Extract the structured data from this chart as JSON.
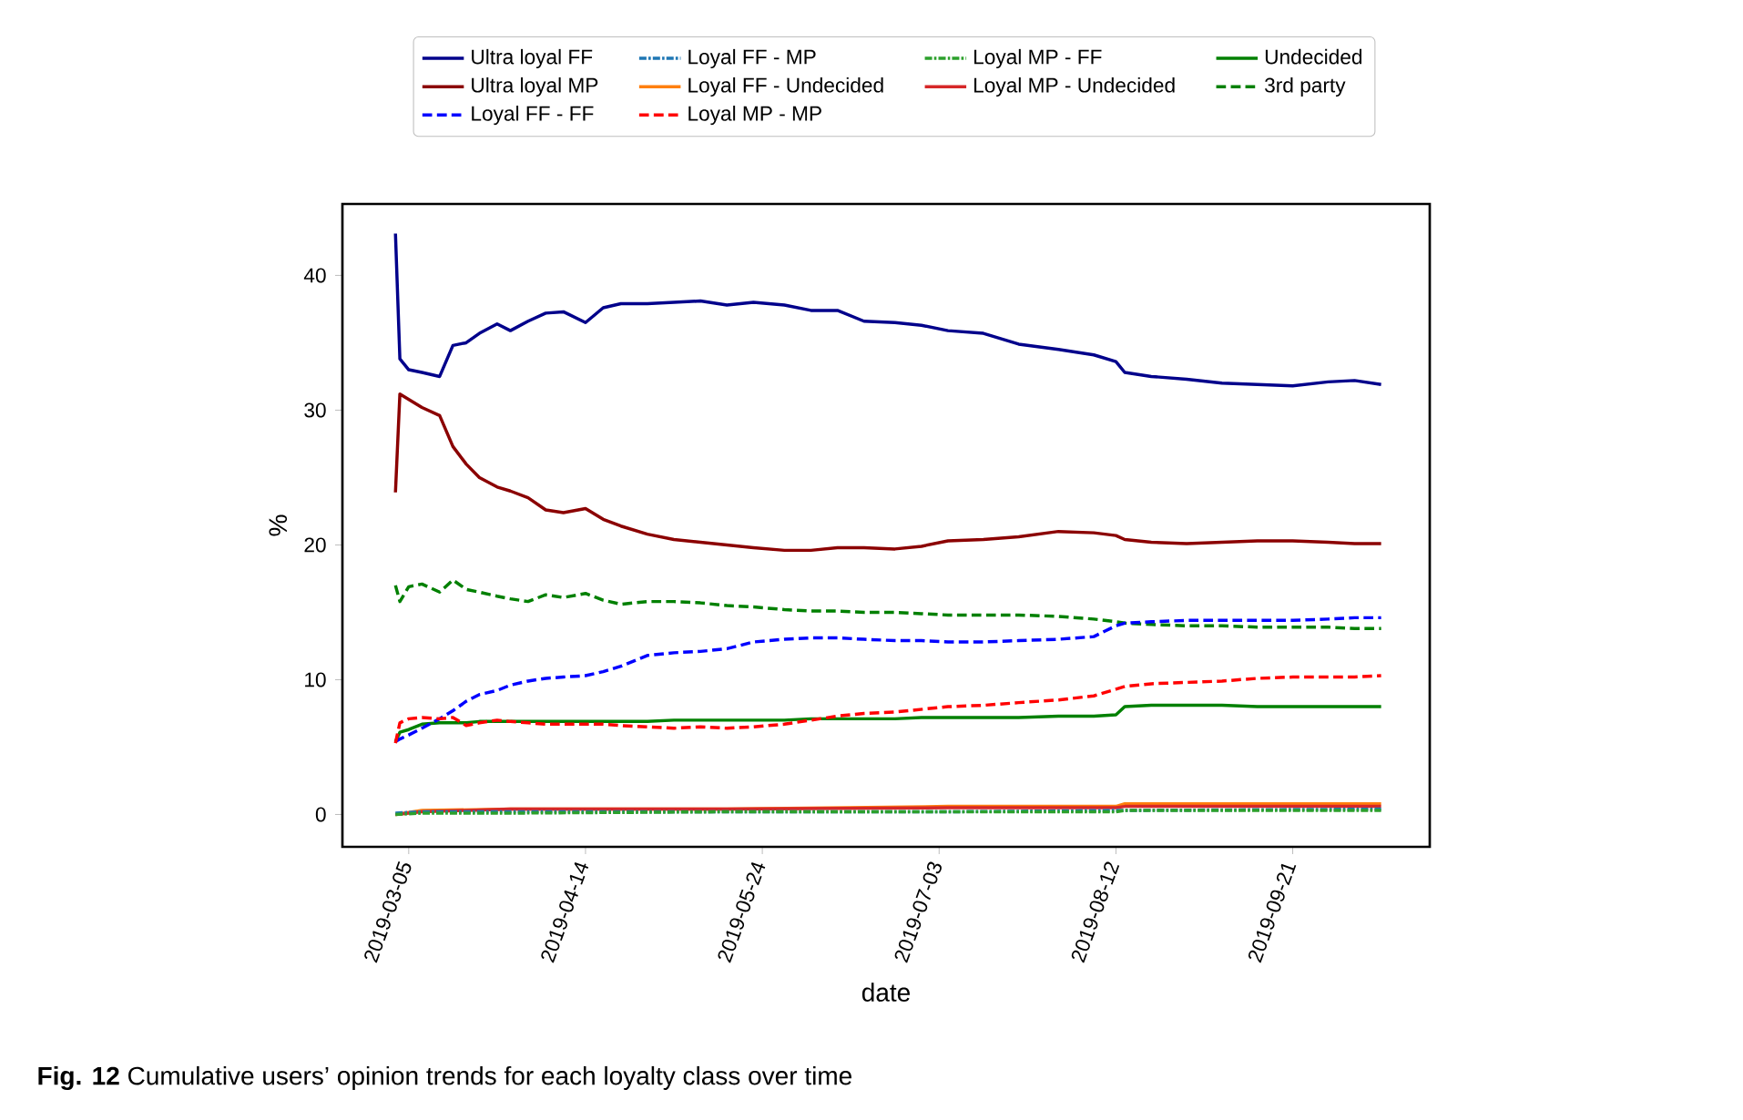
{
  "chart_data": {
    "type": "line",
    "xlabel": "date",
    "ylabel": "%",
    "xlim": [
      "2019-02-18",
      "2019-10-22"
    ],
    "xticks": [
      "2019-03-05",
      "2019-04-14",
      "2019-05-24",
      "2019-07-03",
      "2019-08-12",
      "2019-09-21"
    ],
    "ylim": [
      -2.4,
      45.3
    ],
    "yticks": [
      0,
      10,
      20,
      30,
      40
    ],
    "grid": false,
    "legend": "top",
    "marker": "none",
    "x": [
      "2019-03-02",
      "2019-03-03",
      "2019-03-05",
      "2019-03-08",
      "2019-03-12",
      "2019-03-15",
      "2019-03-18",
      "2019-03-21",
      "2019-03-25",
      "2019-03-28",
      "2019-04-01",
      "2019-04-05",
      "2019-04-09",
      "2019-04-14",
      "2019-04-18",
      "2019-04-22",
      "2019-04-28",
      "2019-05-04",
      "2019-05-10",
      "2019-05-16",
      "2019-05-22",
      "2019-05-29",
      "2019-06-04",
      "2019-06-10",
      "2019-06-16",
      "2019-06-23",
      "2019-06-29",
      "2019-07-05",
      "2019-07-13",
      "2019-07-21",
      "2019-07-30",
      "2019-08-07",
      "2019-08-12",
      "2019-08-14",
      "2019-08-20",
      "2019-08-28",
      "2019-09-05",
      "2019-09-13",
      "2019-09-21",
      "2019-09-29",
      "2019-10-05",
      "2019-10-11"
    ],
    "series": [
      {
        "name": "Ultra loyal FF",
        "color": "#00008b",
        "line_style": "solid",
        "values": [
          43.1,
          33.8,
          33.0,
          32.8,
          32.5,
          34.8,
          35.0,
          35.7,
          36.4,
          35.9,
          36.6,
          37.2,
          37.3,
          36.5,
          37.6,
          37.9,
          37.9,
          38.0,
          38.1,
          37.8,
          38.0,
          37.8,
          37.4,
          37.4,
          36.6,
          36.5,
          36.3,
          35.9,
          35.7,
          34.9,
          34.5,
          34.1,
          33.6,
          32.8,
          32.5,
          32.3,
          32.0,
          31.9,
          31.8,
          32.1,
          32.2,
          31.9
        ]
      },
      {
        "name": "Loyal FF - MP",
        "color": "#1f77b4",
        "line_style": "dashdot",
        "x": [
          "2019-03-02",
          "2019-03-08",
          "2019-03-28",
          "2019-05-16",
          "2019-07-05",
          "2019-08-12",
          "2019-08-14",
          "2019-10-11"
        ],
        "values": [
          0.1,
          0.2,
          0.2,
          0.2,
          0.2,
          0.3,
          0.3,
          0.4
        ]
      },
      {
        "name": "Loyal MP - FF",
        "color": "#2ca02c",
        "line_style": "dashdot",
        "x": [
          "2019-03-02",
          "2019-03-08",
          "2019-03-28",
          "2019-05-16",
          "2019-07-05",
          "2019-08-12",
          "2019-08-14",
          "2019-10-11"
        ],
        "values": [
          0.0,
          0.1,
          0.1,
          0.2,
          0.2,
          0.2,
          0.3,
          0.3
        ]
      },
      {
        "name": "Undecided",
        "color": "#008000",
        "line_style": "solid",
        "values": [
          5.4,
          6.1,
          6.3,
          6.7,
          6.8,
          6.8,
          6.8,
          6.9,
          6.9,
          6.9,
          6.9,
          6.9,
          6.9,
          6.9,
          6.9,
          6.9,
          6.9,
          7.0,
          7.0,
          7.0,
          7.0,
          7.0,
          7.1,
          7.1,
          7.1,
          7.1,
          7.2,
          7.2,
          7.2,
          7.2,
          7.3,
          7.3,
          7.4,
          8.0,
          8.1,
          8.1,
          8.1,
          8.0,
          8.0,
          8.0,
          8.0,
          8.0
        ]
      },
      {
        "name": "Ultra loyal MP",
        "color": "#8b0000",
        "line_style": "solid",
        "values": [
          23.9,
          31.2,
          30.8,
          30.2,
          29.6,
          27.3,
          26.0,
          25.0,
          24.3,
          24.0,
          23.5,
          22.6,
          22.4,
          22.7,
          21.9,
          21.4,
          20.8,
          20.4,
          20.2,
          20.0,
          19.8,
          19.6,
          19.6,
          19.8,
          19.8,
          19.7,
          19.9,
          20.3,
          20.4,
          20.6,
          21.0,
          20.9,
          20.7,
          20.4,
          20.2,
          20.1,
          20.2,
          20.3,
          20.3,
          20.2,
          20.1,
          20.1
        ]
      },
      {
        "name": "Loyal FF - Undecided",
        "color": "#ff7f0e",
        "line_style": "solid",
        "x": [
          "2019-03-02",
          "2019-03-08",
          "2019-03-28",
          "2019-05-16",
          "2019-07-05",
          "2019-08-12",
          "2019-08-14",
          "2019-10-11"
        ],
        "values": [
          0.0,
          0.3,
          0.4,
          0.4,
          0.6,
          0.6,
          0.8,
          0.8
        ]
      },
      {
        "name": "Loyal MP - Undecided",
        "color": "#d62728",
        "line_style": "solid",
        "x": [
          "2019-03-02",
          "2019-03-08",
          "2019-03-28",
          "2019-05-16",
          "2019-07-05",
          "2019-08-12",
          "2019-08-14",
          "2019-10-11"
        ],
        "values": [
          0.0,
          0.2,
          0.4,
          0.4,
          0.5,
          0.5,
          0.6,
          0.6
        ]
      },
      {
        "name": "3rd party",
        "color": "#008000",
        "line_style": "dashed",
        "values": [
          17.0,
          15.8,
          16.9,
          17.1,
          16.5,
          17.4,
          16.7,
          16.5,
          16.2,
          16.0,
          15.8,
          16.3,
          16.1,
          16.4,
          15.9,
          15.6,
          15.8,
          15.8,
          15.7,
          15.5,
          15.4,
          15.2,
          15.1,
          15.1,
          15.0,
          15.0,
          14.9,
          14.8,
          14.8,
          14.8,
          14.7,
          14.5,
          14.3,
          14.2,
          14.1,
          14.0,
          14.0,
          13.9,
          13.9,
          13.9,
          13.8,
          13.8
        ]
      },
      {
        "name": "Loyal FF - FF",
        "color": "#0000ff",
        "line_style": "dashed",
        "values": [
          5.4,
          5.6,
          5.9,
          6.4,
          7.1,
          7.7,
          8.4,
          8.9,
          9.2,
          9.6,
          9.9,
          10.1,
          10.2,
          10.3,
          10.6,
          11.0,
          11.8,
          12.0,
          12.1,
          12.3,
          12.8,
          13.0,
          13.1,
          13.1,
          13.0,
          12.9,
          12.9,
          12.8,
          12.8,
          12.9,
          13.0,
          13.2,
          14.0,
          14.2,
          14.3,
          14.4,
          14.4,
          14.4,
          14.4,
          14.5,
          14.6,
          14.6
        ]
      },
      {
        "name": "Loyal MP - MP",
        "color": "#ff0000",
        "line_style": "dashed",
        "values": [
          5.3,
          6.8,
          7.1,
          7.2,
          7.1,
          7.2,
          6.6,
          6.8,
          7.0,
          6.9,
          6.8,
          6.7,
          6.7,
          6.7,
          6.7,
          6.6,
          6.5,
          6.4,
          6.5,
          6.4,
          6.5,
          6.7,
          7.0,
          7.3,
          7.5,
          7.6,
          7.8,
          8.0,
          8.1,
          8.3,
          8.5,
          8.8,
          9.3,
          9.5,
          9.7,
          9.8,
          9.9,
          10.1,
          10.2,
          10.2,
          10.2,
          10.3
        ]
      }
    ],
    "annotations": [
      "**Fig. 12** Cumulative users’ opinion trends for each loyalty class over time"
    ]
  }
}
